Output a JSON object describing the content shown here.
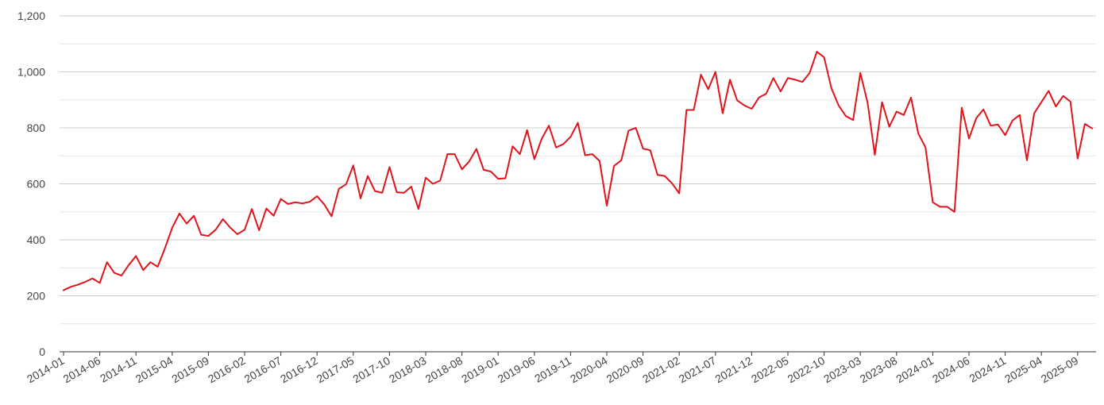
{
  "chart_data": {
    "type": "line",
    "title": "",
    "xlabel": "",
    "ylabel": "",
    "ylim": [
      0,
      1200
    ],
    "y_ticks": [
      "0",
      "200",
      "400",
      "600",
      "800",
      "1,000",
      "1,200"
    ],
    "x_tick_labels": [
      "2014-01",
      "2014-06",
      "2014-11",
      "2015-04",
      "2015-09",
      "2016-02",
      "2016-07",
      "2016-12",
      "2017-05",
      "2017-10",
      "2018-03",
      "2018-08",
      "2019-01",
      "2019-06",
      "2019-11",
      "2020-04",
      "2020-09",
      "2021-02",
      "2021-07",
      "2021-12",
      "2022-05",
      "2022-10",
      "2023-03",
      "2023-08",
      "2024-01",
      "2024-06",
      "2024-11",
      "2025-04",
      "2025-09"
    ],
    "grid": true,
    "legend": "none",
    "line_color": "#e0141c",
    "x_start": "2014-01",
    "series": [
      {
        "values": [
          220,
          232,
          240,
          250,
          262,
          246,
          320,
          282,
          272,
          310,
          342,
          292,
          320,
          304,
          370,
          443,
          494,
          458,
          486,
          418,
          414,
          436,
          474,
          444,
          420,
          436,
          510,
          434,
          512,
          486,
          546,
          528,
          534,
          530,
          536,
          556,
          526,
          484,
          582,
          598,
          666,
          548,
          628,
          574,
          568,
          660,
          570,
          568,
          590,
          510,
          622,
          600,
          612,
          706,
          706,
          652,
          680,
          725,
          650,
          644,
          618,
          620,
          734,
          706,
          792,
          688,
          760,
          808,
          730,
          742,
          768,
          818,
          702,
          706,
          682,
          522,
          664,
          684,
          790,
          800,
          726,
          720,
          632,
          628,
          602,
          566,
          864,
          864,
          990,
          938,
          1000,
          852,
          972,
          898,
          880,
          868,
          908,
          922,
          978,
          930,
          978,
          972,
          964,
          996,
          1072,
          1052,
          942,
          880,
          842,
          828,
          996,
          890,
          704,
          892,
          804,
          858,
          846,
          908,
          780,
          730,
          534,
          518,
          518,
          500,
          872,
          762,
          834,
          866,
          808,
          812,
          774,
          826,
          846,
          684,
          852,
          892,
          932,
          876,
          914,
          894,
          690,
          814,
          798
        ]
      }
    ]
  }
}
